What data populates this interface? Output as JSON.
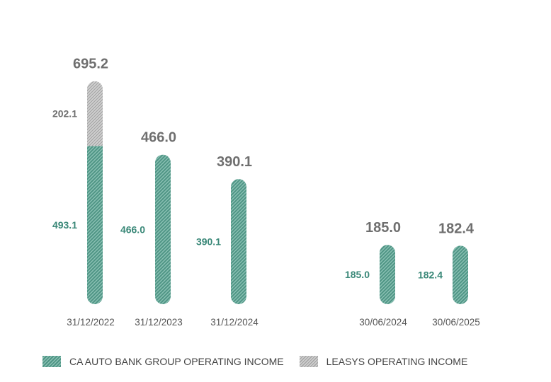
{
  "chart_data": {
    "type": "bar",
    "stacked": true,
    "categories": [
      "31/12/2022",
      "31/12/2023",
      "31/12/2024",
      "30/06/2024",
      "30/06/2025"
    ],
    "series": [
      {
        "name": "CA AUTO BANK GROUP OPERATING INCOME",
        "color": "#4a9383",
        "values": [
          493.1,
          466.0,
          390.1,
          185.0,
          182.4
        ],
        "labels": [
          "493.1",
          "466.0",
          "390.1",
          "185.0",
          "182.4"
        ]
      },
      {
        "name": "LEASYS OPERATING INCOME",
        "color": "#b5b5b5",
        "values": [
          202.1,
          0,
          0,
          0,
          0
        ],
        "labels": [
          "202.1",
          "",
          "",
          "",
          ""
        ]
      }
    ],
    "totals": [
      "695.2",
      "466.0",
      "390.1",
      "185.0",
      "182.4"
    ],
    "groups": [
      [
        "31/12/2022",
        "31/12/2023",
        "31/12/2024"
      ],
      [
        "30/06/2024",
        "30/06/2025"
      ]
    ],
    "title": "",
    "xlabel": "",
    "ylabel": "",
    "ylim": [
      0,
      700
    ],
    "grid": false,
    "legend_position": "bottom-left"
  },
  "legend": {
    "ca_label": "CA AUTO BANK GROUP OPERATING INCOME",
    "leasys_label": "LEASYS OPERATING INCOME"
  },
  "colors": {
    "ca": "#4a9383",
    "ca_label": "#3a8878",
    "leasys": "#b5b5b5",
    "total": "#6f6f6f"
  }
}
